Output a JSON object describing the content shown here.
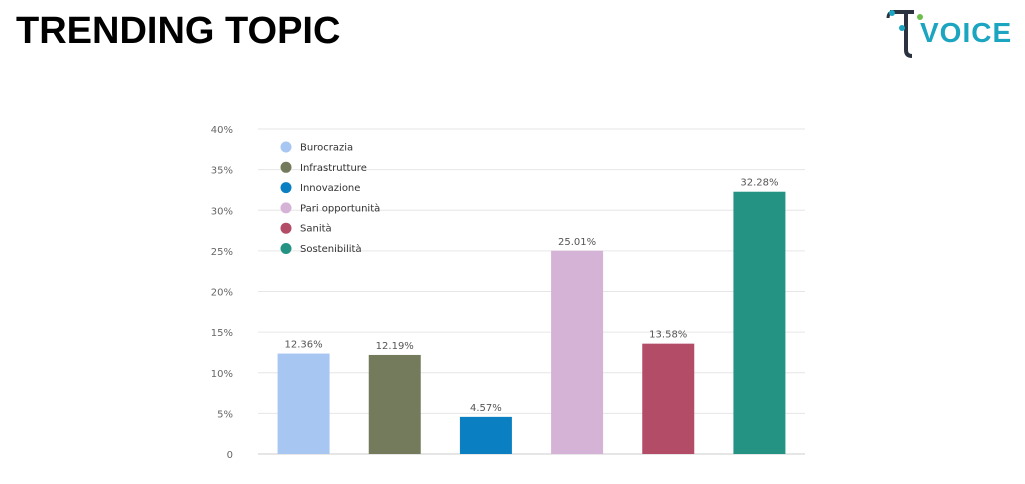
{
  "header": {
    "title": "TRENDING TOPIC",
    "logo_text": "VOICE"
  },
  "colors": {
    "logo_accent": "#1ba5c1",
    "logo_dark": "#2b3340",
    "logo_dot": "#6cc04a"
  },
  "chart_data": {
    "type": "bar",
    "title": "",
    "xlabel": "",
    "ylabel": "",
    "ylim": [
      0,
      40
    ],
    "y_ticks": [
      {
        "value": 0,
        "label": "0"
      },
      {
        "value": 5,
        "label": "5%"
      },
      {
        "value": 10,
        "label": "10%"
      },
      {
        "value": 15,
        "label": "15%"
      },
      {
        "value": 20,
        "label": "20%"
      },
      {
        "value": 25,
        "label": "25%"
      },
      {
        "value": 30,
        "label": "30%"
      },
      {
        "value": 35,
        "label": "35%"
      },
      {
        "value": 40,
        "label": "40%"
      }
    ],
    "grid": true,
    "legend_position": "top-left",
    "bars": [
      {
        "name": "Burocrazia",
        "value": 12.36,
        "label": "12.36%",
        "color": "#a8c6f2"
      },
      {
        "name": "Infrastrutture",
        "value": 12.19,
        "label": "12.19%",
        "color": "#747a5c"
      },
      {
        "name": "Innovazione",
        "value": 4.57,
        "label": "4.57%",
        "color": "#0a7fc1"
      },
      {
        "name": "Pari opportunità",
        "value": 25.01,
        "label": "25.01%",
        "color": "#d5b3d6"
      },
      {
        "name": "Sanità",
        "value": 13.58,
        "label": "13.58%",
        "color": "#b34c66"
      },
      {
        "name": "Sostenibilità",
        "value": 32.28,
        "label": "32.28%",
        "color": "#249384"
      }
    ]
  }
}
